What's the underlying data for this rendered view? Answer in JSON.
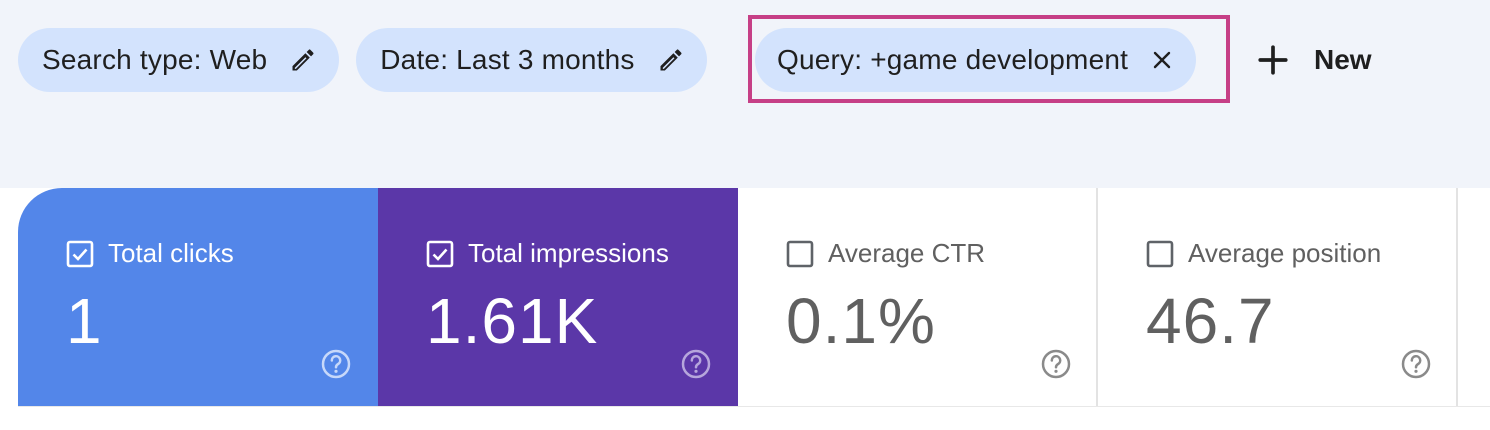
{
  "filters": {
    "search_type": "Search type: Web",
    "date": "Date: Last 3 months",
    "query": "Query: +game development",
    "new_label": "New"
  },
  "metrics": [
    {
      "label": "Total clicks",
      "value": "1",
      "checked": true,
      "color": "#5386e9"
    },
    {
      "label": "Total impressions",
      "value": "1.61K",
      "checked": true,
      "color": "#5b37a8"
    },
    {
      "label": "Average CTR",
      "value": "0.1%",
      "checked": false
    },
    {
      "label": "Average position",
      "value": "46.7",
      "checked": false
    }
  ],
  "colors": {
    "chip_bg": "#d3e3fd",
    "highlight": "#c63f86",
    "page_bg": "#f1f4fa"
  },
  "icons": [
    "edit-pencil-icon",
    "close-icon",
    "plus-icon",
    "checkbox-checked-icon",
    "checkbox-empty-icon",
    "help-icon"
  ]
}
